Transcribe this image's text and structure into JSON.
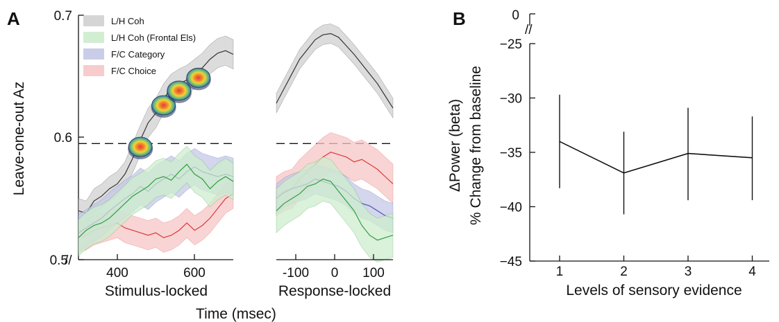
{
  "chart_data": [
    {
      "panel": "A",
      "type": "line",
      "ylabel": "Leave-one-out Az",
      "xlabel": "Time (msec)",
      "ylim": [
        0.5,
        0.7
      ],
      "yticks": [
        0.5,
        0.6,
        0.7
      ],
      "significance_line": 0.595,
      "legend": [
        {
          "name": "L/H Coh",
          "color": "#333333",
          "fill": "#d0d0d0"
        },
        {
          "name": "L/H Coh (Frontal Els)",
          "color": "#2e9e3e",
          "fill": "#cdeccd"
        },
        {
          "name": "F/C Category",
          "color": "#4a55a8",
          "fill": "#c4c8e6"
        },
        {
          "name": "F/C Choice",
          "color": "#d93a3a",
          "fill": "#f7c6c6"
        }
      ],
      "subplots": [
        {
          "label": "Stimulus-locked",
          "xlim": [
            300,
            700
          ],
          "xticks": [
            400,
            600
          ],
          "x": [
            300,
            320,
            340,
            360,
            380,
            400,
            420,
            440,
            460,
            480,
            500,
            520,
            540,
            560,
            580,
            600,
            620,
            640,
            660,
            680,
            700
          ],
          "series": [
            {
              "name": "L/H Coh",
              "mean": [
                0.54,
                0.538,
                0.548,
                0.552,
                0.558,
                0.562,
                0.57,
                0.583,
                0.598,
                0.612,
                0.62,
                0.632,
                0.64,
                0.644,
                0.647,
                0.652,
                0.657,
                0.664,
                0.669,
                0.671,
                0.668
              ],
              "err": [
                0.01,
                0.01,
                0.01,
                0.01,
                0.01,
                0.01,
                0.01,
                0.012,
                0.012,
                0.012,
                0.012,
                0.012,
                0.012,
                0.012,
                0.012,
                0.012,
                0.012,
                0.012,
                0.012,
                0.012,
                0.012
              ]
            },
            {
              "name": "L/H Coh (Frontal Els)",
              "mean": [
                0.518,
                0.524,
                0.528,
                0.53,
                0.534,
                0.54,
                0.546,
                0.552,
                0.556,
                0.56,
                0.566,
                0.568,
                0.565,
                0.572,
                0.578,
                0.57,
                0.566,
                0.558,
                0.564,
                0.568,
                0.564
              ],
              "err": [
                0.015,
                0.015,
                0.015,
                0.015,
                0.015,
                0.015,
                0.015,
                0.015,
                0.015,
                0.015,
                0.015,
                0.015,
                0.015,
                0.015,
                0.015,
                0.015,
                0.015,
                0.015,
                0.015,
                0.015,
                0.015
              ]
            },
            {
              "name": "F/C Category",
              "mean": [
                0.522,
                0.526,
                0.53,
                0.534,
                0.54,
                0.545,
                0.55,
                0.554,
                0.56,
                0.556,
                0.562,
                0.566,
                0.57,
                0.566,
                0.572,
                0.576,
                0.572,
                0.57,
                0.568,
                0.57,
                0.568
              ],
              "err": [
                0.015,
                0.015,
                0.015,
                0.015,
                0.015,
                0.015,
                0.015,
                0.015,
                0.015,
                0.015,
                0.015,
                0.015,
                0.015,
                0.015,
                0.015,
                0.015,
                0.015,
                0.015,
                0.015,
                0.015,
                0.015
              ]
            },
            {
              "name": "F/C Choice",
              "mean": [
                0.518,
                0.52,
                0.524,
                0.526,
                0.528,
                0.53,
                0.526,
                0.524,
                0.522,
                0.52,
                0.522,
                0.518,
                0.52,
                0.524,
                0.53,
                0.524,
                0.528,
                0.534,
                0.542,
                0.55,
                0.554
              ],
              "err": [
                0.012,
                0.012,
                0.012,
                0.012,
                0.012,
                0.012,
                0.012,
                0.012,
                0.012,
                0.012,
                0.012,
                0.012,
                0.012,
                0.012,
                0.012,
                0.012,
                0.012,
                0.012,
                0.012,
                0.012,
                0.012
              ]
            }
          ]
        },
        {
          "label": "Response-locked",
          "xlim": [
            -150,
            150
          ],
          "xticks": [
            -100,
            0,
            100
          ],
          "x": [
            -150,
            -130,
            -110,
            -90,
            -70,
            -50,
            -30,
            -10,
            10,
            30,
            50,
            70,
            90,
            110,
            130,
            150
          ],
          "series": [
            {
              "name": "L/H Coh",
              "mean": [
                0.628,
                0.64,
                0.652,
                0.664,
                0.672,
                0.68,
                0.684,
                0.685,
                0.682,
                0.675,
                0.668,
                0.66,
                0.652,
                0.644,
                0.634,
                0.624
              ],
              "err": [
                0.008,
                0.008,
                0.008,
                0.008,
                0.008,
                0.008,
                0.008,
                0.008,
                0.008,
                0.008,
                0.008,
                0.008,
                0.008,
                0.008,
                0.008,
                0.008
              ]
            },
            {
              "name": "L/H Coh (Frontal Els)",
              "mean": [
                0.54,
                0.546,
                0.55,
                0.554,
                0.56,
                0.562,
                0.566,
                0.564,
                0.556,
                0.548,
                0.54,
                0.528,
                0.52,
                0.516,
                0.518,
                0.52
              ],
              "err": [
                0.018,
                0.018,
                0.018,
                0.018,
                0.018,
                0.018,
                0.018,
                0.018,
                0.018,
                0.018,
                0.018,
                0.018,
                0.018,
                0.018,
                0.018,
                0.018
              ]
            },
            {
              "name": "F/C Category",
              "mean": [
                0.55,
                0.555,
                0.558,
                0.56,
                0.562,
                0.566,
                0.564,
                0.562,
                0.56,
                0.556,
                0.55,
                0.546,
                0.544,
                0.54,
                0.536,
                0.534
              ],
              "err": [
                0.012,
                0.012,
                0.012,
                0.012,
                0.012,
                0.012,
                0.012,
                0.012,
                0.012,
                0.012,
                0.012,
                0.012,
                0.012,
                0.012,
                0.012,
                0.012
              ]
            },
            {
              "name": "F/C Choice",
              "mean": [
                0.552,
                0.556,
                0.558,
                0.566,
                0.572,
                0.578,
                0.584,
                0.588,
                0.586,
                0.584,
                0.58,
                0.582,
                0.578,
                0.574,
                0.568,
                0.562
              ],
              "err": [
                0.016,
                0.016,
                0.016,
                0.016,
                0.016,
                0.016,
                0.016,
                0.016,
                0.016,
                0.016,
                0.016,
                0.016,
                0.016,
                0.016,
                0.016,
                0.016
              ]
            }
          ]
        }
      ],
      "scalp_maps_at_ms": [
        460,
        520,
        560,
        610
      ]
    },
    {
      "panel": "B",
      "type": "line",
      "xlabel": "Levels of sensory evidence",
      "ylabel_line1": "ΔPower (beta)",
      "ylabel_line2": "% Change from baseline",
      "x": [
        1,
        2,
        3,
        4
      ],
      "xticks": [
        1,
        2,
        3,
        4
      ],
      "y": [
        -34.0,
        -36.9,
        -35.1,
        -35.5
      ],
      "err_low": [
        -38.3,
        -40.7,
        -39.4,
        -39.4
      ],
      "err_high": [
        -29.7,
        -33.1,
        -30.9,
        -31.7
      ],
      "ylim": [
        -45,
        -25
      ],
      "yticks": [
        -45,
        -40,
        -35,
        -30,
        -25
      ],
      "ybreak_top": 0
    }
  ],
  "labels": {
    "panelA": "A",
    "panelB": "B",
    "ylabelA": "Leave-one-out Az",
    "xsub1": "Stimulus-locked",
    "xsub2": "Response-locked",
    "xlabelA": "Time (msec)",
    "ylabelB1": "ΔPower (beta)",
    "ylabelB2": "% Change from baseline",
    "xlabelB": "Levels of sensory evidence",
    "legend": [
      "L/H Coh",
      "L/H Coh (Frontal Els)",
      "F/C Category",
      "F/C Choice"
    ],
    "break_mark": "//",
    "ytickA": [
      "0.5",
      "0.6",
      "0.7"
    ],
    "xtick1": [
      "400",
      "600"
    ],
    "xtick2": [
      "-100",
      "0",
      "100"
    ],
    "ytickB": [
      "−45",
      "−40",
      "−35",
      "−30",
      "−25"
    ],
    "ytickB_top": "0",
    "xtickB": [
      "1",
      "2",
      "3",
      "4"
    ]
  }
}
